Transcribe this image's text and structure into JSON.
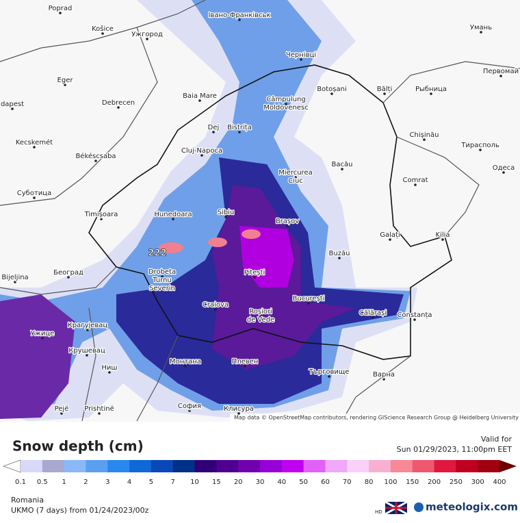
{
  "attribution": "Map data © OpenStreetMap contributors, rendering GIScience Research Group @ Heidelberg University",
  "legend": {
    "title": "Snow depth (cm)",
    "labels": [
      0.1,
      0.5,
      1,
      2,
      3,
      4,
      5,
      7,
      10,
      15,
      20,
      30,
      40,
      50,
      60,
      70,
      80,
      100,
      150,
      200,
      250,
      300,
      400
    ],
    "colors": [
      "#d8d8f8",
      "#a8a8d0",
      "#8ab8f8",
      "#5aa0f0",
      "#2888f0",
      "#1068d8",
      "#0848b8",
      "#003088",
      "#300078",
      "#500090",
      "#7000b0",
      "#9800d8",
      "#c000f0",
      "#e060f8",
      "#f0a8f8",
      "#f8d0f8",
      "#f8b0d0",
      "#f88898",
      "#f05870",
      "#e01840",
      "#c00020",
      "#a00010"
    ],
    "low_color": "#ffffff",
    "high_color": "#700000"
  },
  "valid": {
    "label": "Valid for",
    "time": "Sun 01/29/2023, 11:00pm EET"
  },
  "footer": {
    "region": "Romania",
    "model": "UKMO (7 days) from 01/24/2023/00z",
    "hd": "HD",
    "brand": "meteologix.com"
  },
  "map": {
    "peak_label": "222",
    "cities": [
      "Poprad",
      "Košice",
      "Ужгород",
      "Івано-Франківськ",
      "Умань",
      "Чернівці",
      "Eger",
      "Baia Mare",
      [
        "Câmpulung",
        "Moldovenesc"
      ],
      "Botoșani",
      "Bălți",
      "Рыбница",
      "Первомай",
      "dapest",
      "Debrecen",
      "Dej",
      "Bistrița",
      "Chișinău",
      "Kecskemét",
      "Тирасполь",
      "Cluj-Napoca",
      "Békéscsaba",
      "Bacău",
      [
        "Miercurea",
        "Ciuc"
      ],
      "Одеса",
      "Суботица",
      "Comrat",
      "Timișoara",
      "Hunedoara",
      "Sibiu",
      "Brașov",
      "Galați",
      "Kilia",
      "Buzău",
      "Bijeljina",
      "Београд",
      [
        "Drobeta",
        "Turnu",
        "Severin"
      ],
      "Pitești",
      "București",
      "Craiova",
      "Călărași",
      "Constanța",
      [
        "Roșiori",
        "de Vede"
      ],
      "Крагујевац",
      "Ужице",
      "Крушевац",
      "Монтана",
      "Плевен",
      "Търговище",
      "Ниш",
      "Варна",
      "Pejë",
      "Prishtinë",
      "София",
      "Клисура"
    ]
  }
}
